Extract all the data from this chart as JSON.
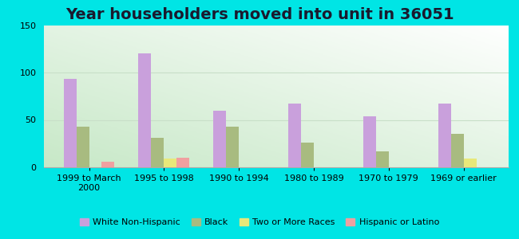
{
  "title": "Year householders moved into unit in 36051",
  "categories": [
    "1999 to March\n2000",
    "1995 to 1998",
    "1990 to 1994",
    "1980 to 1989",
    "1970 to 1979",
    "1969 or earlier"
  ],
  "series": {
    "White Non-Hispanic": [
      93,
      120,
      60,
      67,
      54,
      67
    ],
    "Black": [
      43,
      31,
      43,
      26,
      17,
      35
    ],
    "Two or More Races": [
      0,
      9,
      0,
      0,
      0,
      9
    ],
    "Hispanic or Latino": [
      6,
      10,
      0,
      0,
      0,
      0
    ]
  },
  "colors": {
    "White Non-Hispanic": "#c9a0dc",
    "Black": "#a8bb80",
    "Two or More Races": "#e8e87a",
    "Hispanic or Latino": "#f0a0a0"
  },
  "ylim": [
    0,
    150
  ],
  "yticks": [
    0,
    50,
    100,
    150
  ],
  "outer_background": "#00e5e5",
  "bar_width": 0.17,
  "title_fontsize": 14,
  "grid_color": "#c8dfc8"
}
